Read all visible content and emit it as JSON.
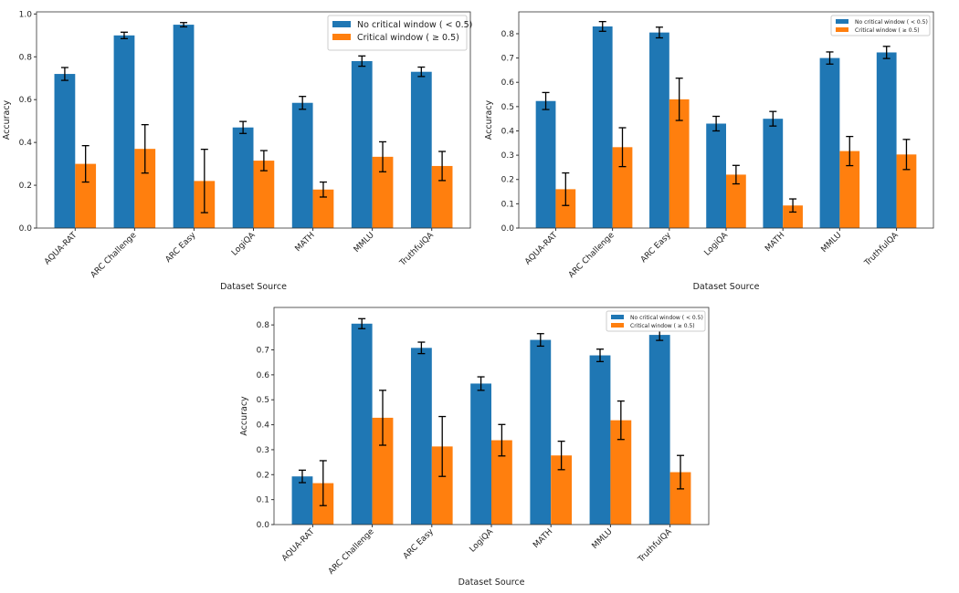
{
  "colors": {
    "no_critical": "#1f77b4",
    "critical": "#ff7f0e"
  },
  "chart_data": [
    {
      "type": "bar",
      "categories": [
        "AQUA-RAT",
        "ARC Challenge",
        "ARC Easy",
        "LogiQA",
        "MATH",
        "MMLU",
        "TruthfulQA"
      ],
      "xlabel": "Dataset Source",
      "ylabel": "Accuracy",
      "ylim": [
        0,
        1.01
      ],
      "yticks": [
        "0.0",
        "0.2",
        "0.4",
        "0.6",
        "0.8",
        "1.0"
      ],
      "legend": "top-right",
      "series": [
        {
          "name": "No critical window ( < 0.5)",
          "values": [
            0.72,
            0.9,
            0.95,
            0.47,
            0.585,
            0.78,
            0.73
          ],
          "errors": [
            0.03,
            0.015,
            0.01,
            0.028,
            0.03,
            0.024,
            0.022
          ]
        },
        {
          "name": "Critical window ( ≥ 0.5)",
          "values": [
            0.3,
            0.37,
            0.22,
            0.315,
            0.18,
            0.333,
            0.29
          ],
          "errors": [
            0.085,
            0.113,
            0.148,
            0.047,
            0.035,
            0.07,
            0.068
          ]
        }
      ]
    },
    {
      "type": "bar",
      "categories": [
        "AQUA-RAT",
        "ARC Challenge",
        "ARC Easy",
        "LogiQA",
        "MATH",
        "MMLU",
        "TruthfulQA"
      ],
      "xlabel": "Dataset Source",
      "ylabel": "Accuracy",
      "ylim": [
        0,
        0.89
      ],
      "yticks": [
        "0.0",
        "0.1",
        "0.2",
        "0.3",
        "0.4",
        "0.5",
        "0.6",
        "0.7",
        "0.8"
      ],
      "legend": "top-right",
      "series": [
        {
          "name": "No critical window ( < 0.5)",
          "values": [
            0.523,
            0.83,
            0.805,
            0.43,
            0.45,
            0.7,
            0.723
          ],
          "errors": [
            0.035,
            0.02,
            0.022,
            0.03,
            0.03,
            0.025,
            0.025
          ]
        },
        {
          "name": "Critical window ( ≥ 0.5)",
          "values": [
            0.16,
            0.333,
            0.53,
            0.22,
            0.093,
            0.317,
            0.303
          ],
          "errors": [
            0.067,
            0.08,
            0.087,
            0.038,
            0.027,
            0.06,
            0.062
          ]
        }
      ]
    },
    {
      "type": "bar",
      "categories": [
        "AQUA-RAT",
        "ARC Challenge",
        "ARC Easy",
        "LogiQA",
        "MATH",
        "MMLU",
        "TruthfulQA"
      ],
      "xlabel": "Dataset Source",
      "ylabel": "Accuracy",
      "ylim": [
        0,
        0.87
      ],
      "yticks": [
        "0.0",
        "0.1",
        "0.2",
        "0.3",
        "0.4",
        "0.5",
        "0.6",
        "0.7",
        "0.8"
      ],
      "legend": "top-right",
      "series": [
        {
          "name": "No critical window ( < 0.5)",
          "values": [
            0.193,
            0.805,
            0.708,
            0.565,
            0.74,
            0.678,
            0.76
          ],
          "errors": [
            0.025,
            0.02,
            0.023,
            0.027,
            0.025,
            0.025,
            0.022
          ]
        },
        {
          "name": "Critical window ( ≥ 0.5)",
          "values": [
            0.166,
            0.428,
            0.313,
            0.338,
            0.277,
            0.418,
            0.21
          ],
          "errors": [
            0.09,
            0.11,
            0.12,
            0.063,
            0.057,
            0.077,
            0.067
          ]
        }
      ]
    }
  ]
}
